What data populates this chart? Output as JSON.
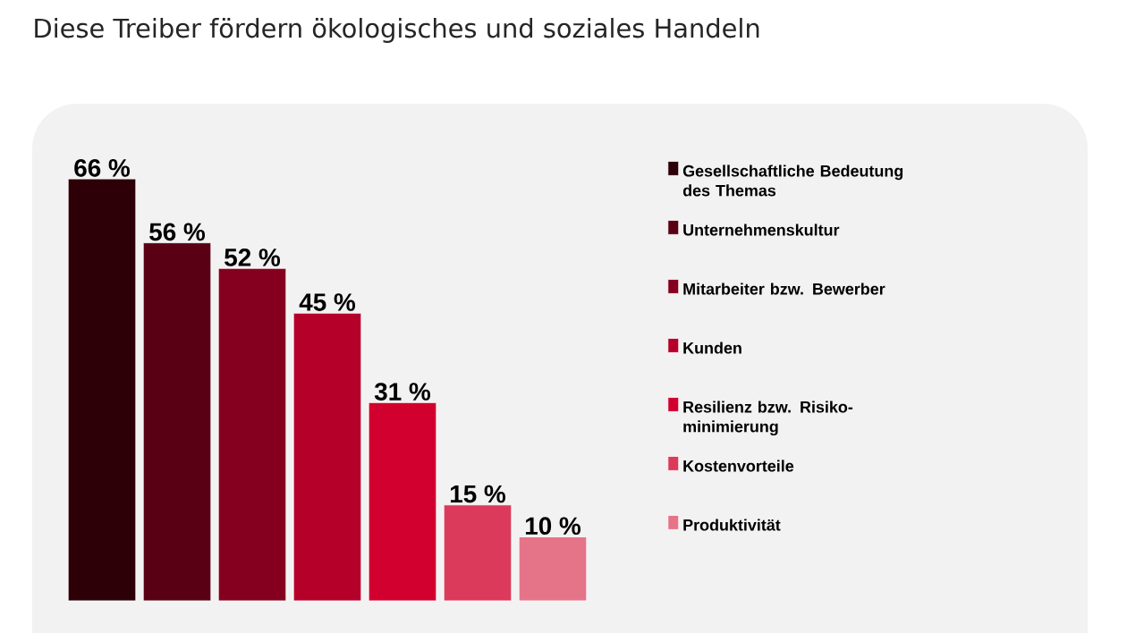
{
  "chart_data": {
    "type": "bar",
    "title": "Diese Treiber fördern ökologisches und soziales Handeln",
    "categories": [
      null,
      null,
      null,
      null,
      null,
      null,
      null
    ],
    "series": [
      {
        "name": "Gesellschaftliche Bedeutung des Themas",
        "color": "#2d0008",
        "values": [
          66,
          null,
          null,
          null,
          null,
          null,
          null
        ],
        "value_labels": [
          "66 %",
          null,
          null,
          null,
          null,
          null,
          null
        ]
      },
      {
        "name": "Unternehmenskultur",
        "color": "#5a0014",
        "values": [
          null,
          56,
          null,
          null,
          null,
          null,
          null
        ],
        "value_labels": [
          null,
          "56 %",
          null,
          null,
          null,
          null,
          null
        ]
      },
      {
        "name": "Mitarbeiter bzw. Bewerber",
        "color": "#85001e",
        "values": [
          null,
          null,
          52,
          null,
          null,
          null,
          null
        ],
        "value_labels": [
          null,
          null,
          "52 %",
          null,
          null,
          null,
          null
        ]
      },
      {
        "name": "Kunden",
        "color": "#b5002a",
        "values": [
          null,
          null,
          null,
          45,
          null,
          null,
          null
        ],
        "value_labels": [
          null,
          null,
          null,
          "45 %",
          null,
          null,
          null
        ]
      },
      {
        "name": "Resilienz bzw. Risiko-minimierung",
        "color": "#d2002f",
        "values": [
          null,
          null,
          null,
          null,
          31,
          null,
          null
        ],
        "value_labels": [
          null,
          null,
          null,
          null,
          "31 %",
          null,
          null
        ]
      },
      {
        "name": "Kostenvorteile",
        "color": "#db3a5a",
        "values": [
          null,
          null,
          null,
          null,
          null,
          15,
          null
        ],
        "value_labels": [
          null,
          null,
          null,
          null,
          null,
          "15 %",
          null
        ]
      },
      {
        "name": "Produktivität",
        "color": "#e57489",
        "values": [
          null,
          null,
          null,
          null,
          null,
          null,
          10
        ],
        "value_labels": [
          null,
          null,
          null,
          null,
          null,
          null,
          "10 %"
        ]
      }
    ],
    "stacked": true,
    "legend": "right"
  }
}
